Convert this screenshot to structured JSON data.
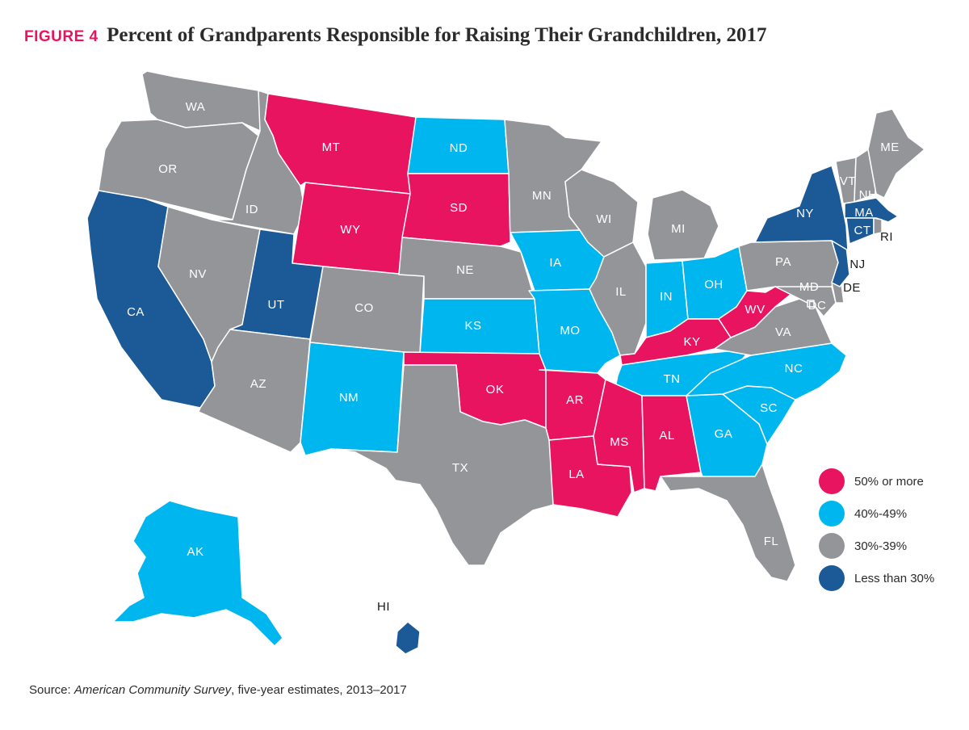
{
  "title": {
    "tag": "FIGURE 4",
    "text": "Percent of Grandparents Responsible for Raising Their Grandchildren, 2017"
  },
  "colors": {
    "50_plus": "#e8145f",
    "40_49": "#00b6ef",
    "30_39": "#939598",
    "under_30": "#1b5a96"
  },
  "legend": [
    {
      "key": "50_plus",
      "label": "50% or more"
    },
    {
      "key": "40_49",
      "label": "40%-49%"
    },
    {
      "key": "30_39",
      "label": "30%-39%"
    },
    {
      "key": "under_30",
      "label": "Less than 30%"
    }
  ],
  "states": [
    {
      "abbr": "WA",
      "group": "30_39"
    },
    {
      "abbr": "OR",
      "group": "30_39"
    },
    {
      "abbr": "CA",
      "group": "under_30"
    },
    {
      "abbr": "ID",
      "group": "30_39"
    },
    {
      "abbr": "NV",
      "group": "30_39"
    },
    {
      "abbr": "MT",
      "group": "50_plus"
    },
    {
      "abbr": "WY",
      "group": "50_plus"
    },
    {
      "abbr": "UT",
      "group": "under_30"
    },
    {
      "abbr": "AZ",
      "group": "30_39"
    },
    {
      "abbr": "CO",
      "group": "30_39"
    },
    {
      "abbr": "NM",
      "group": "40_49"
    },
    {
      "abbr": "ND",
      "group": "40_49"
    },
    {
      "abbr": "SD",
      "group": "50_plus"
    },
    {
      "abbr": "NE",
      "group": "30_39"
    },
    {
      "abbr": "KS",
      "group": "40_49"
    },
    {
      "abbr": "OK",
      "group": "50_plus"
    },
    {
      "abbr": "TX",
      "group": "30_39"
    },
    {
      "abbr": "MN",
      "group": "30_39"
    },
    {
      "abbr": "IA",
      "group": "40_49"
    },
    {
      "abbr": "MO",
      "group": "40_49"
    },
    {
      "abbr": "AR",
      "group": "50_plus"
    },
    {
      "abbr": "LA",
      "group": "50_plus"
    },
    {
      "abbr": "WI",
      "group": "30_39"
    },
    {
      "abbr": "IL",
      "group": "30_39"
    },
    {
      "abbr": "MI",
      "group": "30_39"
    },
    {
      "abbr": "IN",
      "group": "40_49"
    },
    {
      "abbr": "OH",
      "group": "40_49"
    },
    {
      "abbr": "KY",
      "group": "50_plus"
    },
    {
      "abbr": "TN",
      "group": "40_49"
    },
    {
      "abbr": "MS",
      "group": "50_plus"
    },
    {
      "abbr": "AL",
      "group": "50_plus"
    },
    {
      "abbr": "GA",
      "group": "40_49"
    },
    {
      "abbr": "FL",
      "group": "30_39"
    },
    {
      "abbr": "SC",
      "group": "40_49"
    },
    {
      "abbr": "NC",
      "group": "40_49"
    },
    {
      "abbr": "VA",
      "group": "30_39"
    },
    {
      "abbr": "WV",
      "group": "50_plus"
    },
    {
      "abbr": "PA",
      "group": "30_39"
    },
    {
      "abbr": "NY",
      "group": "under_30"
    },
    {
      "abbr": "NJ",
      "group": "under_30"
    },
    {
      "abbr": "DE",
      "group": "30_39"
    },
    {
      "abbr": "MD",
      "group": "30_39"
    },
    {
      "abbr": "DC",
      "group": "30_39"
    },
    {
      "abbr": "VT",
      "group": "30_39"
    },
    {
      "abbr": "NH",
      "group": "30_39"
    },
    {
      "abbr": "ME",
      "group": "30_39"
    },
    {
      "abbr": "MA",
      "group": "under_30"
    },
    {
      "abbr": "CT",
      "group": "under_30"
    },
    {
      "abbr": "RI",
      "group": "30_39"
    },
    {
      "abbr": "AK",
      "group": "40_49"
    },
    {
      "abbr": "HI",
      "group": "under_30"
    }
  ],
  "source": {
    "prefix": "Source: ",
    "name": "American Community Survey",
    "suffix": ", five-year estimates, 2013–2017"
  }
}
